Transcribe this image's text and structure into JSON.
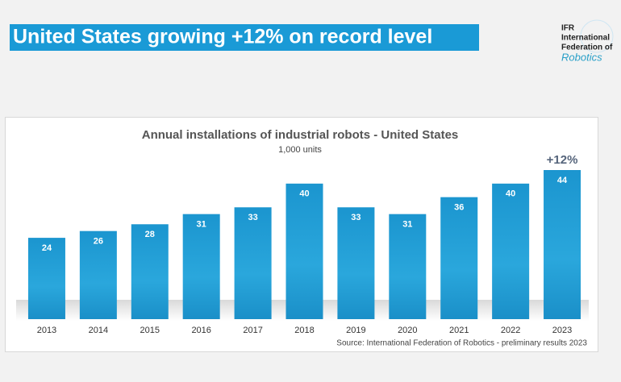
{
  "header": {
    "title": "United States growing +12% on record level"
  },
  "logo": {
    "line1": "IFR",
    "line2": "International",
    "line3": "Federation of",
    "line4": "Robotics"
  },
  "chart_data": {
    "type": "bar",
    "title": "Annual installations of industrial robots - United States",
    "subtitle": "1,000 units",
    "categories": [
      "2013",
      "2014",
      "2015",
      "2016",
      "2017",
      "2018",
      "2019",
      "2020",
      "2021",
      "2022",
      "2023"
    ],
    "values": [
      24,
      26,
      28,
      31,
      33,
      40,
      33,
      31,
      36,
      40,
      44
    ],
    "color": "#1b9bd4",
    "annotation": "+12%",
    "source": "Source: International Federation of Robotics - preliminary results 2023"
  }
}
